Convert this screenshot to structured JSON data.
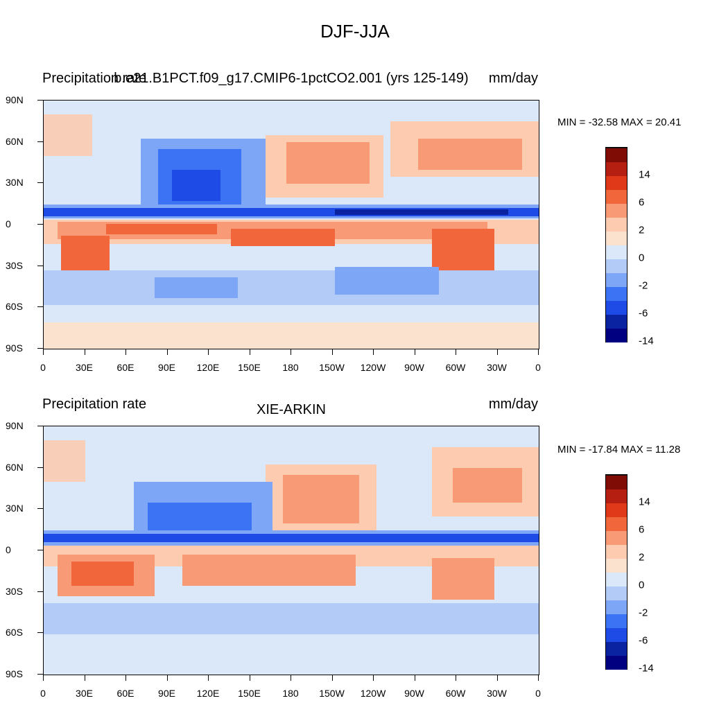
{
  "title": "DJF-JJA",
  "colorbar_colors": [
    "#000080",
    "#0a23a0",
    "#1e4be6",
    "#3c73f5",
    "#7ea6f7",
    "#b2cbf7",
    "#dae8f9",
    "#fbe2cf",
    "#fccbb0",
    "#f79a75",
    "#f2663c",
    "#e0391a",
    "#b51f12",
    "#7f0d06"
  ],
  "colorbar_labels": [
    "14",
    "6",
    "2",
    "0",
    "-2",
    "-6",
    "-14"
  ],
  "panels": [
    {
      "left_label": "Precipitation rate",
      "center_label": "b.e21.B1PCT.f09_g17.CMIP6-1pctCO2.001 (yrs 125-149)",
      "right_label": "mm/day",
      "minmax": "MIN = -32.58 MAX =  20.41"
    },
    {
      "left_label": "Precipitation rate",
      "center_label": "XIE-ARKIN",
      "right_label": "mm/day",
      "minmax": "MIN = -17.84 MAX =  11.28"
    }
  ],
  "lat_labels": [
    "90N",
    "60N",
    "30N",
    "0",
    "30S",
    "60S",
    "90S"
  ],
  "lon_labels": [
    "0",
    "30E",
    "60E",
    "90E",
    "120E",
    "150E",
    "180",
    "150W",
    "120W",
    "90W",
    "60W",
    "30W",
    "0"
  ]
}
